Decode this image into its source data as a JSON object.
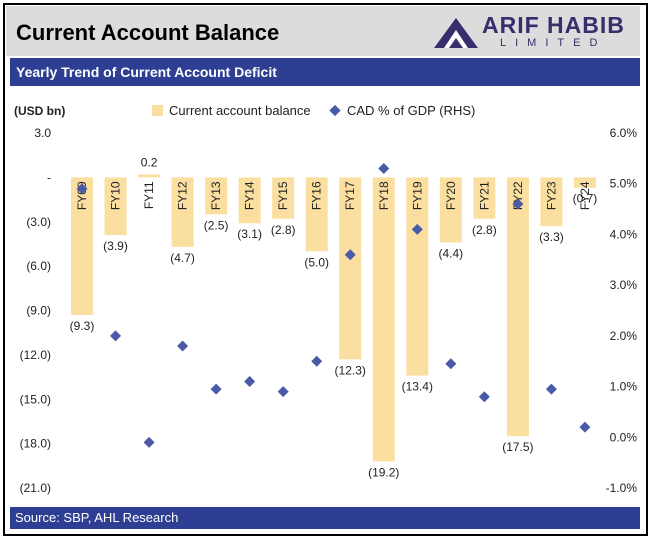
{
  "header": {
    "title": "Current Account Balance",
    "logo_main": "ARIF HABIB",
    "logo_sub": "LIMITED"
  },
  "subtitle": "Yearly Trend of Current Account Deficit",
  "source": "Source: SBP, AHL Research",
  "colors": {
    "bar": "#fbdfa0",
    "marker": "#4a5aa6",
    "band": "#2e3f93"
  },
  "chart_data": {
    "type": "bar",
    "title": "",
    "ylabel_left": "(USD bn)",
    "categories": [
      "FY09",
      "FY10",
      "FY11",
      "FY12",
      "FY13",
      "FY14",
      "FY15",
      "FY16",
      "FY17",
      "FY18",
      "FY19",
      "FY20",
      "FY21",
      "FY22",
      "FY23",
      "FY24"
    ],
    "series": [
      {
        "name": "Current account balance",
        "type": "bar",
        "axis": "left",
        "values": [
          -9.3,
          -3.9,
          0.2,
          -4.7,
          -2.5,
          -3.1,
          -2.8,
          -5.0,
          -12.3,
          -19.2,
          -13.4,
          -4.4,
          -2.8,
          -17.5,
          -3.3,
          -0.7
        ],
        "labels": [
          "(9.3)",
          "(3.9)",
          "0.2",
          "(4.7)",
          "(2.5)",
          "(3.1)",
          "(2.8)",
          "(5.0)",
          "(12.3)",
          "(19.2)",
          "(13.4)",
          "(4.4)",
          "(2.8)",
          "(17.5)",
          "(3.3)",
          "(0.7)"
        ]
      },
      {
        "name": "CAD % of GDP (RHS)",
        "type": "scatter",
        "axis": "right",
        "values": [
          4.9,
          2.0,
          -0.1,
          1.8,
          0.95,
          1.1,
          0.9,
          1.5,
          3.6,
          5.3,
          4.1,
          1.45,
          0.8,
          4.6,
          0.95,
          0.2
        ]
      }
    ],
    "ylim_left": [
      -21,
      3
    ],
    "yticks_left": [
      3,
      0,
      -3,
      -6,
      -9,
      -12,
      -15,
      -18,
      -21
    ],
    "yticks_left_labels": [
      "3.0",
      "-",
      "(3.0)",
      "(6.0)",
      "(9.0)",
      "(12.0)",
      "(15.0)",
      "(18.0)",
      "(21.0)"
    ],
    "ylim_right": [
      -1,
      6
    ],
    "yticks_right": [
      6,
      5,
      4,
      3,
      2,
      1,
      0,
      -1
    ],
    "yticks_right_labels": [
      "6.0%",
      "5.0%",
      "4.0%",
      "3.0%",
      "2.0%",
      "1.0%",
      "0.0%",
      "-1.0%"
    ],
    "legend_position": "top",
    "grid": false
  }
}
